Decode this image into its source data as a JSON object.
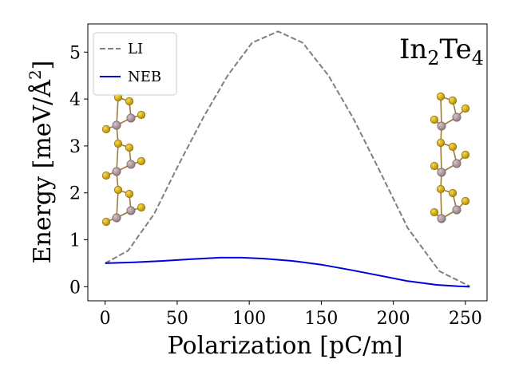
{
  "chart_data": {
    "type": "line",
    "title": "",
    "xlabel": "Polarization [pC/m]",
    "ylabel": "Energy [meV/Å²]",
    "ylabel_parts": {
      "before": "Energy [meV/Å",
      "sup": "2",
      "after": "]"
    },
    "annotation": {
      "base": "In",
      "sub1": "2",
      "mid": "Te",
      "sub2": "4"
    },
    "xlim": [
      -12,
      265
    ],
    "ylim": [
      -0.3,
      5.6
    ],
    "xticks": [
      0,
      50,
      100,
      150,
      200,
      250
    ],
    "yticks": [
      0,
      1,
      2,
      3,
      4,
      5
    ],
    "grid": false,
    "legend_position": "top-left",
    "series": [
      {
        "name": "LI",
        "color": "#7f7f7f",
        "linestyle": "dashed",
        "x": [
          0,
          16,
          34,
          51,
          68,
          85,
          102,
          120,
          137,
          155,
          172,
          190,
          210,
          232,
          253
        ],
        "y": [
          0.5,
          0.77,
          1.55,
          2.6,
          3.6,
          4.5,
          5.2,
          5.44,
          5.2,
          4.5,
          3.6,
          2.5,
          1.25,
          0.33,
          0.01
        ]
      },
      {
        "name": "NEB",
        "color": "#0000dd",
        "linestyle": "solid",
        "x": [
          0,
          20,
          40,
          60,
          80,
          95,
          110,
          130,
          150,
          170,
          190,
          210,
          230,
          245,
          253
        ],
        "y": [
          0.5,
          0.52,
          0.55,
          0.59,
          0.62,
          0.62,
          0.6,
          0.55,
          0.47,
          0.36,
          0.24,
          0.12,
          0.04,
          0.01,
          0.0
        ]
      }
    ]
  }
}
